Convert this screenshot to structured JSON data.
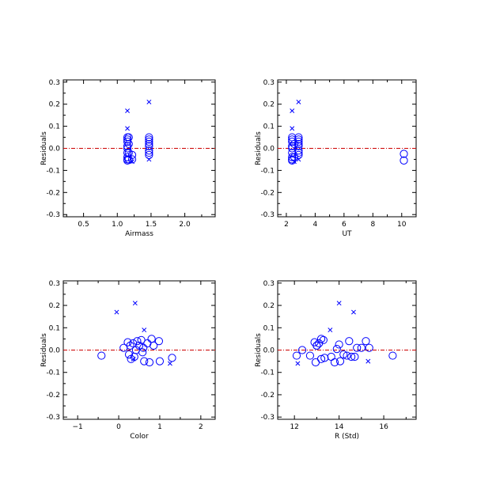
{
  "figure": {
    "background": "#ffffff"
  },
  "style": {
    "marker_color": "#0000ff",
    "zero_line_color": "#cc0000",
    "axis_color": "#000000"
  },
  "chart_data": [
    {
      "type": "scatter",
      "xlabel": "Airmass",
      "ylabel": "Residuals",
      "xlim": [
        0.2,
        2.45
      ],
      "ylim": [
        -0.31,
        0.31
      ],
      "xticks": [
        0.5,
        1.0,
        1.5,
        2.0
      ],
      "xtick_labels": [
        "0.5",
        "1.0",
        "1.5",
        "2.0"
      ],
      "yticks": [
        -0.3,
        -0.2,
        -0.1,
        0.0,
        0.1,
        0.2,
        0.3
      ],
      "ytick_labels": [
        "-0.3",
        "-0.2",
        "-0.1",
        "0.0",
        "0.1",
        "0.2",
        "0.3"
      ],
      "zero_line": true,
      "grid": false,
      "series": [
        {
          "marker": "circle",
          "points": [
            [
              1.15,
              0.05
            ],
            [
              1.15,
              0.04
            ],
            [
              1.15,
              0.03
            ],
            [
              1.15,
              0.01
            ],
            [
              1.15,
              0.0
            ],
            [
              1.15,
              -0.02
            ],
            [
              1.15,
              -0.04
            ],
            [
              1.15,
              -0.05
            ],
            [
              1.15,
              -0.055
            ],
            [
              1.17,
              0.05
            ],
            [
              1.17,
              0.02
            ],
            [
              1.17,
              -0.02
            ],
            [
              1.17,
              -0.05
            ],
            [
              1.22,
              -0.05
            ],
            [
              1.22,
              -0.03
            ],
            [
              1.47,
              0.05
            ],
            [
              1.47,
              0.04
            ],
            [
              1.47,
              0.03
            ],
            [
              1.47,
              0.02
            ],
            [
              1.47,
              0.01
            ],
            [
              1.47,
              -0.01
            ],
            [
              1.47,
              -0.02
            ],
            [
              1.47,
              -0.03
            ]
          ]
        },
        {
          "marker": "x",
          "points": [
            [
              1.15,
              0.17
            ],
            [
              1.15,
              0.09
            ],
            [
              1.22,
              -0.06
            ],
            [
              1.47,
              0.21
            ],
            [
              1.47,
              -0.05
            ]
          ]
        }
      ]
    },
    {
      "type": "scatter",
      "xlabel": "UT",
      "ylabel": "Residuals",
      "xlim": [
        1.4,
        11.0
      ],
      "ylim": [
        -0.31,
        0.31
      ],
      "xticks": [
        2,
        4,
        6,
        8,
        10
      ],
      "xtick_labels": [
        "2",
        "4",
        "6",
        "8",
        "10"
      ],
      "yticks": [
        -0.3,
        -0.2,
        -0.1,
        0.0,
        0.1,
        0.2,
        0.3
      ],
      "ytick_labels": [
        "-0.3",
        "-0.2",
        "-0.1",
        "0.0",
        "0.1",
        "0.2",
        "0.3"
      ],
      "zero_line": true,
      "grid": false,
      "series": [
        {
          "marker": "circle",
          "points": [
            [
              2.4,
              0.05
            ],
            [
              2.4,
              0.04
            ],
            [
              2.4,
              0.03
            ],
            [
              2.4,
              0.01
            ],
            [
              2.4,
              0.0
            ],
            [
              2.4,
              -0.02
            ],
            [
              2.4,
              -0.04
            ],
            [
              2.4,
              -0.05
            ],
            [
              2.4,
              -0.055
            ],
            [
              2.55,
              0.02
            ],
            [
              2.55,
              -0.04
            ],
            [
              2.85,
              0.05
            ],
            [
              2.85,
              0.04
            ],
            [
              2.85,
              0.03
            ],
            [
              2.85,
              0.02
            ],
            [
              2.85,
              0.01
            ],
            [
              2.85,
              -0.01
            ],
            [
              2.85,
              -0.02
            ],
            [
              2.85,
              -0.03
            ],
            [
              10.15,
              -0.025
            ],
            [
              10.15,
              -0.055
            ]
          ]
        },
        {
          "marker": "x",
          "points": [
            [
              2.4,
              0.17
            ],
            [
              2.4,
              0.09
            ],
            [
              2.55,
              -0.06
            ],
            [
              2.85,
              0.21
            ],
            [
              2.85,
              -0.05
            ]
          ]
        }
      ]
    },
    {
      "type": "scatter",
      "xlabel": "Color",
      "ylabel": "Residuals",
      "xlim": [
        -1.35,
        2.35
      ],
      "ylim": [
        -0.31,
        0.31
      ],
      "xticks": [
        -1,
        0,
        1,
        2
      ],
      "xtick_labels": [
        "−1",
        "0",
        "1",
        "2"
      ],
      "yticks": [
        -0.3,
        -0.2,
        -0.1,
        0.0,
        0.1,
        0.2,
        0.3
      ],
      "ytick_labels": [
        "-0.3",
        "-0.2",
        "-0.1",
        "0.0",
        "0.1",
        "0.2",
        "0.3"
      ],
      "zero_line": true,
      "grid": false,
      "series": [
        {
          "marker": "circle",
          "points": [
            [
              -0.42,
              -0.025
            ],
            [
              0.12,
              0.01
            ],
            [
              0.22,
              0.035
            ],
            [
              0.28,
              0.02
            ],
            [
              0.25,
              -0.02
            ],
            [
              0.3,
              -0.04
            ],
            [
              0.35,
              0.03
            ],
            [
              0.38,
              -0.03
            ],
            [
              0.42,
              0.0
            ],
            [
              0.45,
              0.04
            ],
            [
              0.5,
              0.02
            ],
            [
              0.55,
              0.045
            ],
            [
              0.58,
              -0.01
            ],
            [
              0.6,
              0.01
            ],
            [
              0.62,
              -0.05
            ],
            [
              0.7,
              0.03
            ],
            [
              0.75,
              -0.055
            ],
            [
              0.8,
              0.05
            ],
            [
              0.85,
              0.02
            ],
            [
              0.98,
              0.04
            ],
            [
              1.0,
              -0.05
            ],
            [
              1.3,
              -0.035
            ]
          ]
        },
        {
          "marker": "x",
          "points": [
            [
              -0.05,
              0.17
            ],
            [
              0.4,
              0.21
            ],
            [
              0.62,
              0.09
            ],
            [
              1.25,
              -0.06
            ],
            [
              0.36,
              -0.04
            ]
          ]
        }
      ]
    },
    {
      "type": "scatter",
      "xlabel": "R (Std)",
      "ylabel": "Residuals",
      "xlim": [
        11.25,
        17.45
      ],
      "ylim": [
        -0.31,
        0.31
      ],
      "xticks": [
        12,
        14,
        16
      ],
      "xtick_labels": [
        "12",
        "14",
        "16"
      ],
      "yticks": [
        -0.3,
        -0.2,
        -0.1,
        0.0,
        0.1,
        0.2,
        0.3
      ],
      "ytick_labels": [
        "-0.3",
        "-0.2",
        "-0.1",
        "0.0",
        "0.1",
        "0.2",
        "0.3"
      ],
      "zero_line": true,
      "grid": false,
      "series": [
        {
          "marker": "circle",
          "points": [
            [
              12.1,
              -0.025
            ],
            [
              12.35,
              0.0
            ],
            [
              12.7,
              -0.025
            ],
            [
              12.9,
              0.035
            ],
            [
              12.95,
              -0.055
            ],
            [
              13.0,
              0.02
            ],
            [
              13.1,
              0.03
            ],
            [
              13.2,
              0.05
            ],
            [
              13.3,
              0.045
            ],
            [
              13.35,
              -0.035
            ],
            [
              13.2,
              -0.04
            ],
            [
              13.65,
              -0.03
            ],
            [
              13.8,
              -0.055
            ],
            [
              13.9,
              0.005
            ],
            [
              14.0,
              0.025
            ],
            [
              14.05,
              -0.05
            ],
            [
              14.2,
              -0.02
            ],
            [
              14.35,
              -0.025
            ],
            [
              14.45,
              0.04
            ],
            [
              14.8,
              0.01
            ],
            [
              14.7,
              -0.03
            ],
            [
              15.2,
              0.04
            ],
            [
              15.35,
              0.01
            ],
            [
              16.4,
              -0.025
            ],
            [
              15.0,
              0.01
            ],
            [
              14.55,
              -0.03
            ],
            [
              13.0,
              0.02
            ]
          ]
        },
        {
          "marker": "x",
          "points": [
            [
              12.15,
              -0.06
            ],
            [
              13.6,
              0.09
            ],
            [
              14.0,
              0.21
            ],
            [
              14.65,
              0.17
            ],
            [
              15.3,
              -0.05
            ]
          ]
        }
      ]
    }
  ]
}
